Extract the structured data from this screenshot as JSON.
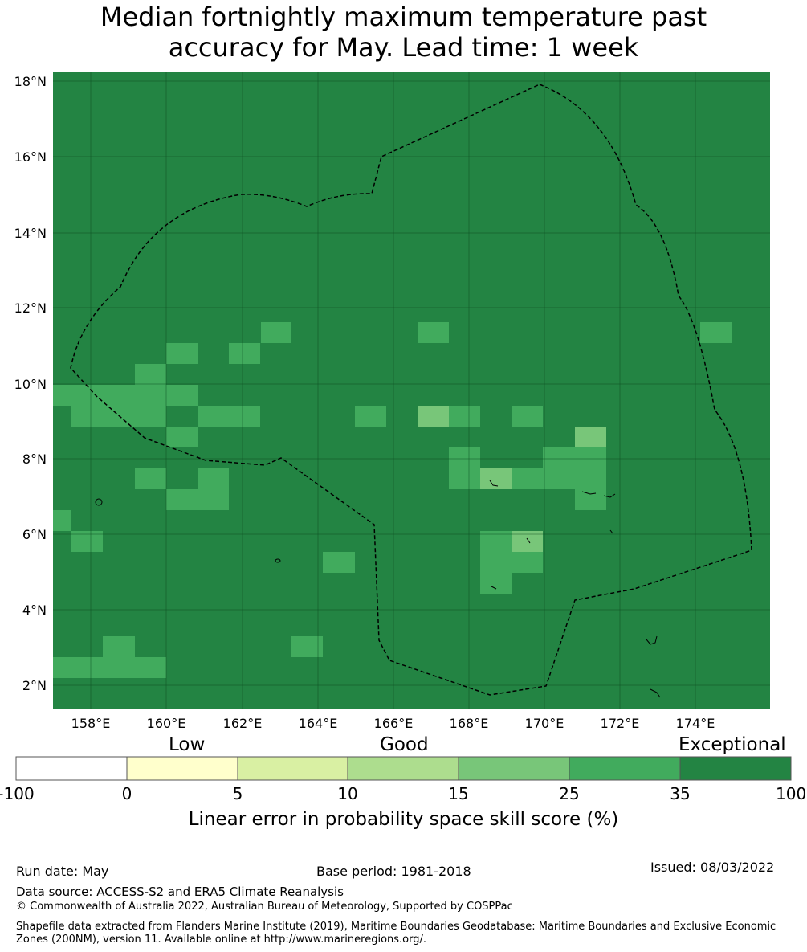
{
  "title": {
    "line1": "Median fortnightly maximum temperature past",
    "line2": "accuracy for May. Lead time: 1 week"
  },
  "map": {
    "lon_range": [
      157,
      176
    ],
    "lat_range": [
      1.4,
      18.3
    ],
    "lon_ticks": [
      "158°E",
      "160°E",
      "162°E",
      "164°E",
      "166°E",
      "168°E",
      "170°E",
      "172°E",
      "174°E"
    ],
    "lat_ticks": [
      "18°N",
      "16°N",
      "14°N",
      "12°N",
      "10°N",
      "8°N",
      "6°N",
      "4°N",
      "2°N"
    ],
    "background_category": "35-100",
    "grid_lines": true,
    "boundary_line": "dashed black"
  },
  "colorbar": {
    "categories": [
      "Low",
      "Good",
      "Exceptional"
    ],
    "ticks": [
      "-100",
      "0",
      "5",
      "10",
      "15",
      "25",
      "35",
      "100"
    ],
    "colors": [
      "#ffffff",
      "#ffffcc",
      "#d9f0a3",
      "#addd8e",
      "#78c679",
      "#41ab5d",
      "#238443"
    ],
    "label": "Linear error in probability space skill score (%)"
  },
  "footer": {
    "run_date": "Run date: May",
    "base_period": "Base period: 1981-2018",
    "issued": "Issued: 08/03/2022",
    "data_source": "Data source: ACCESS-S2 and ERA5 Climate Reanalysis",
    "copyright": "© Commonwealth of Australia 2022, Australian Bureau of Meteorology, Supported by COSPPac",
    "shapefile": "Shapefile data extracted from Flanders Marine Institute (2019), Maritime Boundaries Geodatabase: Maritime Boundaries and Exclusive Economic Zones (200NM), version 11. Available online at http://www.marineregions.org/."
  }
}
